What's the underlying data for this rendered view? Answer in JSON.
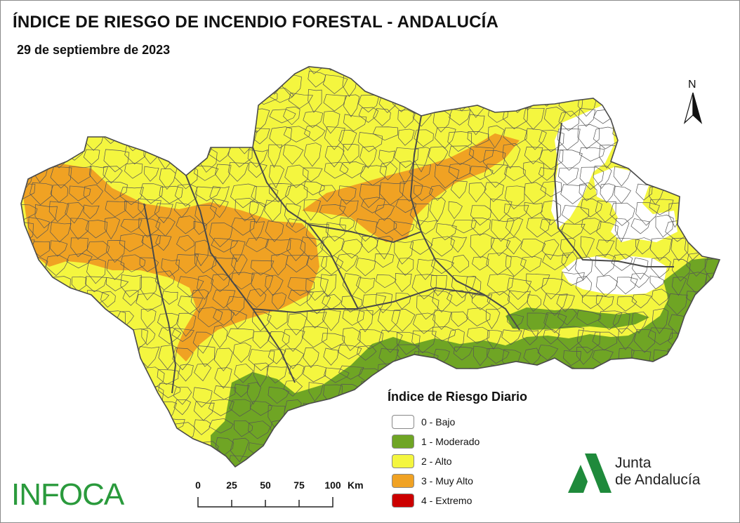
{
  "header": {
    "title": "ÍNDICE DE RIESGO DE INCENDIO FORESTAL - ANDALUCÍA",
    "date": "29 de septiembre de 2023"
  },
  "north_arrow": {
    "label": "N"
  },
  "legend": {
    "title": "Índice de Riesgo Diario",
    "items": [
      {
        "label": "0 - Bajo",
        "color": "#ffffff"
      },
      {
        "label": "1 - Moderado",
        "color": "#6fa524"
      },
      {
        "label": "2 - Alto",
        "color": "#f4f63f"
      },
      {
        "label": "3 - Muy Alto",
        "color": "#f0a223"
      },
      {
        "label": "4 - Extremo",
        "color": "#cc0000"
      }
    ]
  },
  "scale_bar": {
    "ticks": [
      "0",
      "25",
      "50",
      "75",
      "100"
    ],
    "unit": "Km"
  },
  "branding": {
    "infoca": "INFOCA",
    "junta_line1": "Junta",
    "junta_line2": "de Andalucía",
    "junta_color": "#1f8a3b"
  },
  "colors": {
    "bajo": "#ffffff",
    "moderado": "#6fa524",
    "alto": "#f4f63f",
    "muy_alto": "#f0a223",
    "boundary": "#555555"
  }
}
